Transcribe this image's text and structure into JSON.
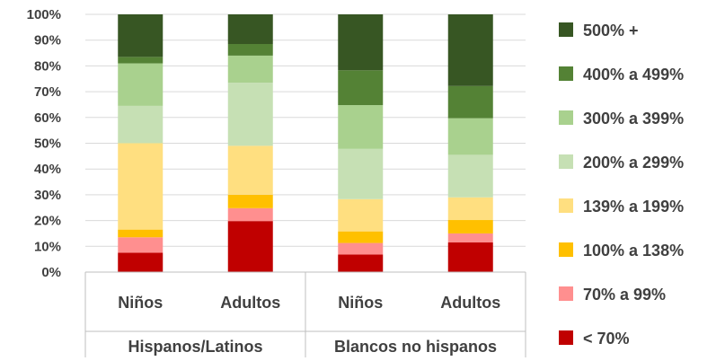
{
  "chart_data": {
    "type": "bar",
    "stacked": true,
    "percent": true,
    "ylim": [
      0,
      100
    ],
    "yticks": [
      "0%",
      "10%",
      "20%",
      "30%",
      "40%",
      "50%",
      "60%",
      "70%",
      "80%",
      "90%",
      "100%"
    ],
    "grid": true,
    "legend_position": "right",
    "categories": [
      "Niños",
      "Adultos",
      "Niños",
      "Adultos"
    ],
    "groups": [
      {
        "label": "Hispanos/Latinos",
        "categories": [
          0,
          1
        ]
      },
      {
        "label": "Blancos no hispanos",
        "categories": [
          2,
          3
        ]
      }
    ],
    "series": [
      {
        "name": "< 70%",
        "color": "#C00000",
        "values": [
          7.5,
          19.8,
          6.8,
          11.5
        ]
      },
      {
        "name": "70% a 99%",
        "color": "#FF8F8F",
        "values": [
          6.0,
          5.0,
          4.5,
          3.5
        ]
      },
      {
        "name": "100% a 138%",
        "color": "#FFC000",
        "values": [
          3.0,
          5.2,
          4.5,
          5.2
        ]
      },
      {
        "name": "139% a 199%",
        "color": "#FFDF80",
        "values": [
          33.5,
          19.0,
          12.5,
          8.8
        ]
      },
      {
        "name": "200% a 299%",
        "color": "#C6E0B4",
        "values": [
          14.5,
          24.5,
          19.5,
          16.5
        ]
      },
      {
        "name": "300% a 399%",
        "color": "#A9D18E",
        "values": [
          16.5,
          10.5,
          17.0,
          14.2
        ]
      },
      {
        "name": "400% a 499%",
        "color": "#548235",
        "values": [
          2.5,
          4.5,
          13.5,
          12.5
        ]
      },
      {
        "name": "500% +",
        "color": "#375623",
        "values": [
          16.5,
          11.5,
          21.7,
          27.8
        ]
      }
    ]
  }
}
